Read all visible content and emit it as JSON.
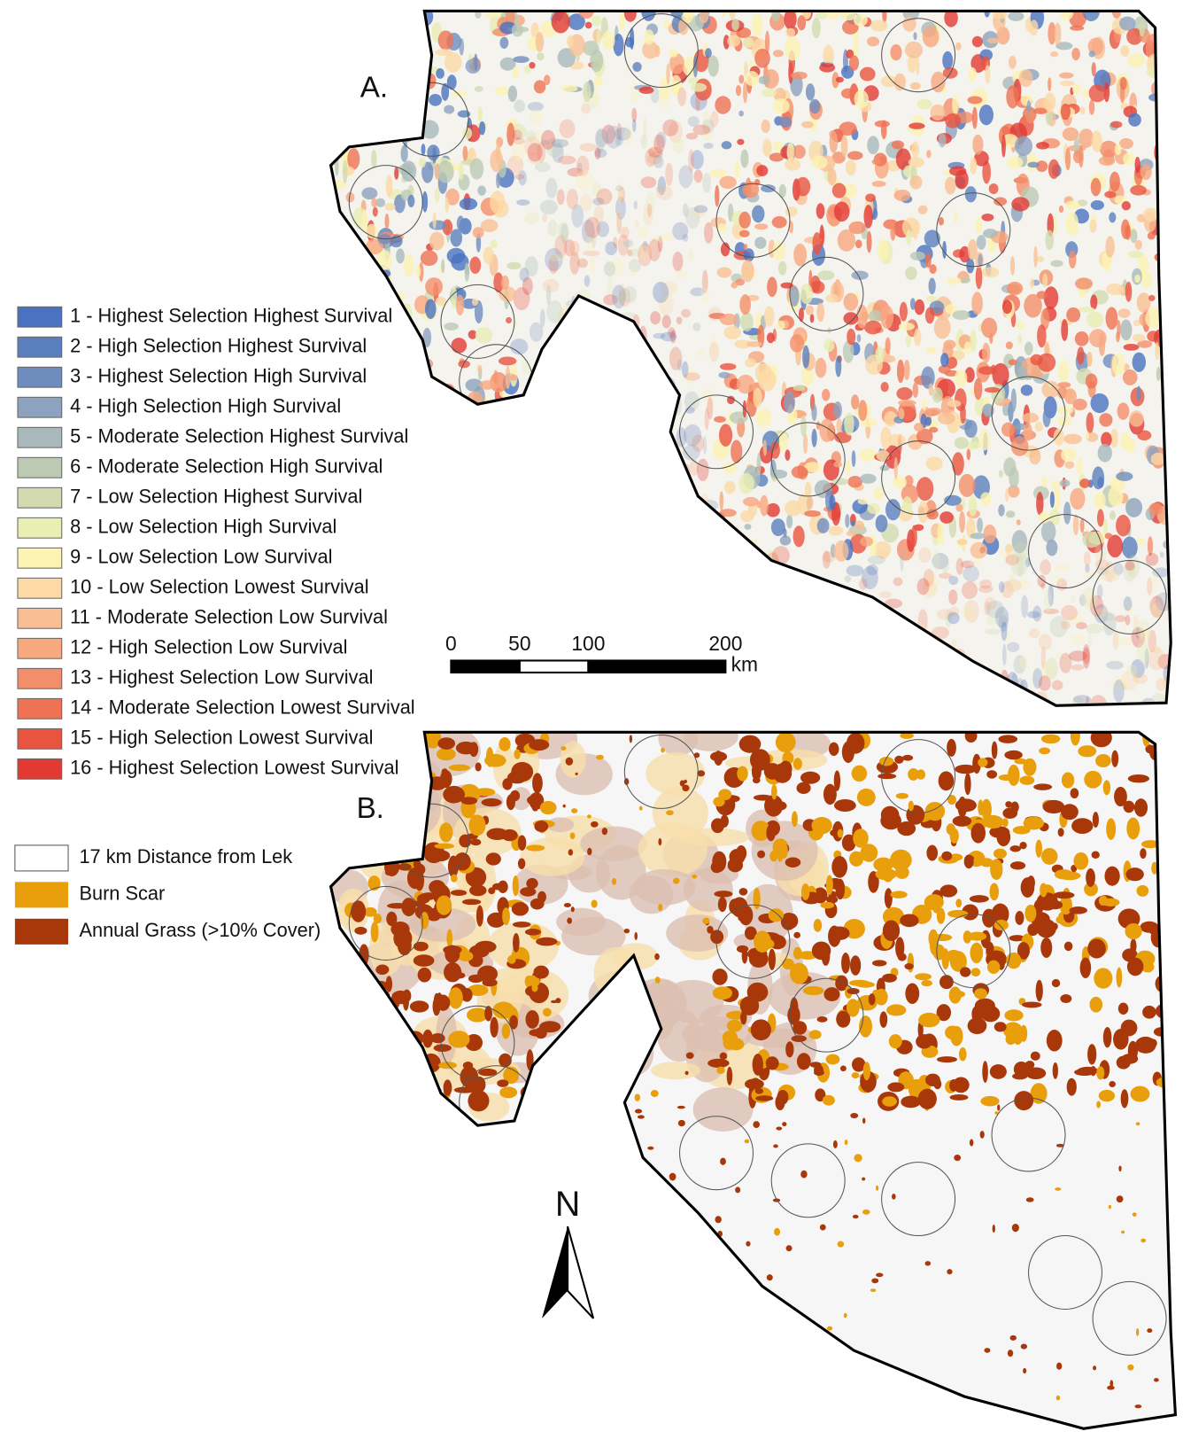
{
  "panels": [
    {
      "label": "A."
    },
    {
      "label": "B."
    }
  ],
  "legend_a": [
    {
      "label": "1 - Highest Selection Highest Survival",
      "color": "#4a72c0"
    },
    {
      "label": "2 - High Selection Highest Survival",
      "color": "#5a7fbd"
    },
    {
      "label": "3 - Highest Selection High Survival",
      "color": "#6f8cbe"
    },
    {
      "label": "4 - High Selection High Survival",
      "color": "#8da2bf"
    },
    {
      "label": "5 - Moderate Selection Highest Survival",
      "color": "#a9b9bb"
    },
    {
      "label": "6 - Moderate Selection High Survival",
      "color": "#bccab4"
    },
    {
      "label": "7 - Low Selection Highest Survival",
      "color": "#d2dbb0"
    },
    {
      "label": "8 - Low Selection High Survival",
      "color": "#e9eeb3"
    },
    {
      "label": "9 - Low Selection Low Survival",
      "color": "#fdf3b3"
    },
    {
      "label": "10 - Low Selection Lowest Survival",
      "color": "#fcd9a5"
    },
    {
      "label": "11 - Moderate Selection Low Survival",
      "color": "#f9bf94"
    },
    {
      "label": "12 - High Selection Low Survival",
      "color": "#f7a87f"
    },
    {
      "label": "13 - Highest Selection Low Survival",
      "color": "#f48e6a"
    },
    {
      "label": "14 - Moderate Selection Lowest Survival",
      "color": "#ef7253"
    },
    {
      "label": "15 - High Selection Lowest Survival",
      "color": "#e95440"
    },
    {
      "label": "16 - Highest Selection Lowest Survival",
      "color": "#e23a33"
    }
  ],
  "legend_b": [
    {
      "label": "17 km Distance from Lek",
      "color": "#ffffff"
    },
    {
      "label": "Burn Scar",
      "color": "#e99e0c"
    },
    {
      "label": "Annual Grass (>10% Cover)",
      "color": "#a8380a"
    }
  ],
  "scale_bar": {
    "ticks": [
      0,
      50,
      100,
      200
    ],
    "unit": "km"
  },
  "north_arrow": "N"
}
